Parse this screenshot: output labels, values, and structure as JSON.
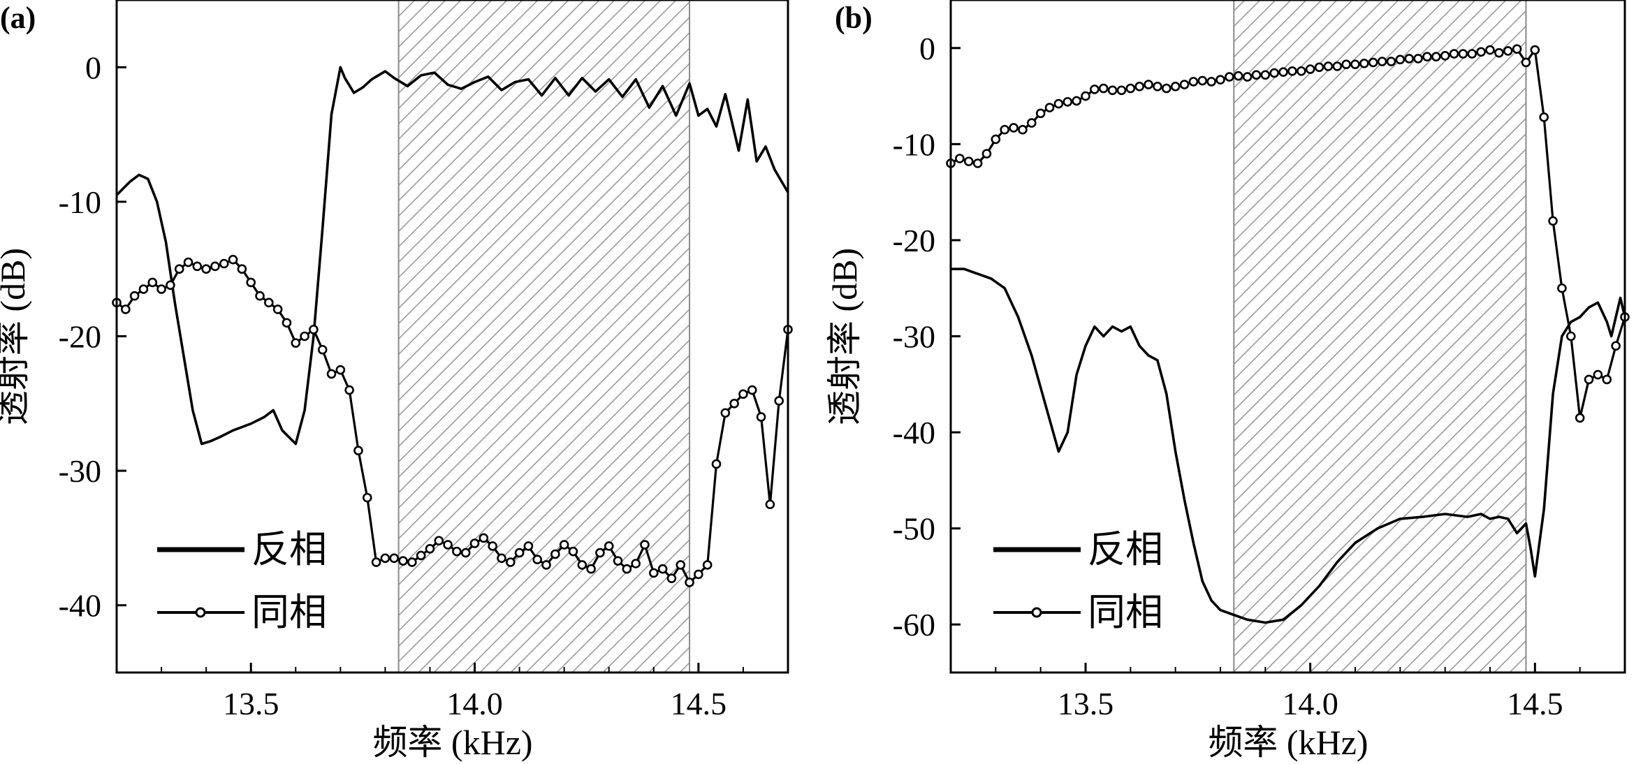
{
  "chart_data": [
    {
      "type": "line",
      "panel_label": "(a)",
      "xlabel": "频率 (kHz)",
      "ylabel": "透射率 (dB)",
      "xlim": [
        13.2,
        14.7
      ],
      "ylim": [
        -45,
        5
      ],
      "xticks": [
        13.5,
        14.0,
        14.5
      ],
      "xtick_labels": [
        "13.5",
        "14.0",
        "14.5"
      ],
      "yticks": [
        0,
        -10,
        -20,
        -30,
        -40
      ],
      "ytick_labels": [
        "0",
        "-10",
        "-20",
        "-30",
        "-40"
      ],
      "band": [
        13.83,
        14.48
      ],
      "legend": [
        "反相",
        "同相"
      ],
      "legend_position": "bottom-left",
      "series": [
        {
          "name": "反相",
          "marker": "none",
          "x": [
            13.2,
            13.23,
            13.25,
            13.27,
            13.29,
            13.31,
            13.33,
            13.35,
            13.37,
            13.39,
            13.41,
            13.43,
            13.46,
            13.5,
            13.53,
            13.55,
            13.57,
            13.6,
            13.62,
            13.64,
            13.66,
            13.68,
            13.7,
            13.71,
            13.73,
            13.75,
            13.77,
            13.8,
            13.82,
            13.85,
            13.88,
            13.91,
            13.94,
            13.97,
            14.0,
            14.03,
            14.06,
            14.09,
            14.12,
            14.15,
            14.18,
            14.21,
            14.24,
            14.27,
            14.3,
            14.33,
            14.36,
            14.39,
            14.42,
            14.45,
            14.48,
            14.5,
            14.52,
            14.54,
            14.56,
            14.59,
            14.61,
            14.63,
            14.65,
            14.67,
            14.7
          ],
          "values": [
            -9.5,
            -8.5,
            -8.0,
            -8.3,
            -10.0,
            -13.0,
            -17.5,
            -21.5,
            -25.5,
            -28.0,
            -27.8,
            -27.5,
            -27.0,
            -26.5,
            -26.0,
            -25.5,
            -27.0,
            -28.0,
            -25.5,
            -20.0,
            -12.0,
            -3.5,
            0,
            -0.8,
            -1.9,
            -1.5,
            -0.9,
            -0.3,
            -0.8,
            -1.4,
            -0.6,
            -0.4,
            -1.3,
            -1.6,
            -1.1,
            -0.7,
            -1.7,
            -1.1,
            -0.9,
            -2.1,
            -0.8,
            -2.1,
            -0.8,
            -1.8,
            -0.9,
            -2.2,
            -0.9,
            -3.0,
            -1.4,
            -3.6,
            -1.2,
            -3.6,
            -3.1,
            -4.4,
            -2.0,
            -6.2,
            -2.4,
            -7.0,
            -5.9,
            -7.6,
            -9.3
          ]
        },
        {
          "name": "同相",
          "marker": "circle",
          "x": [
            13.2,
            13.22,
            13.24,
            13.26,
            13.28,
            13.3,
            13.32,
            13.34,
            13.36,
            13.38,
            13.4,
            13.42,
            13.44,
            13.46,
            13.48,
            13.5,
            13.52,
            13.54,
            13.56,
            13.58,
            13.6,
            13.62,
            13.64,
            13.66,
            13.68,
            13.7,
            13.72,
            13.74,
            13.76,
            13.78,
            13.8,
            13.82,
            13.84,
            13.86,
            13.88,
            13.9,
            13.92,
            13.94,
            13.96,
            13.98,
            14.0,
            14.02,
            14.04,
            14.06,
            14.08,
            14.1,
            14.12,
            14.14,
            14.16,
            14.18,
            14.2,
            14.22,
            14.24,
            14.26,
            14.28,
            14.3,
            14.32,
            14.34,
            14.36,
            14.38,
            14.4,
            14.42,
            14.44,
            14.46,
            14.48,
            14.5,
            14.52,
            14.54,
            14.56,
            14.58,
            14.6,
            14.62,
            14.64,
            14.66,
            14.68,
            14.7
          ],
          "values": [
            -17.5,
            -18.0,
            -17.0,
            -16.5,
            -16.0,
            -16.5,
            -16.2,
            -15.0,
            -14.5,
            -14.8,
            -15.0,
            -14.8,
            -14.6,
            -14.3,
            -15.0,
            -16.0,
            -17.0,
            -17.5,
            -18.0,
            -19.0,
            -20.5,
            -20.0,
            -19.5,
            -21.0,
            -22.8,
            -22.5,
            -24.0,
            -28.5,
            -32.0,
            -36.8,
            -36.5,
            -36.5,
            -36.7,
            -36.8,
            -36.3,
            -35.8,
            -35.2,
            -35.5,
            -36.0,
            -36.1,
            -35.4,
            -35.0,
            -35.6,
            -36.5,
            -36.8,
            -36.1,
            -35.6,
            -36.6,
            -37.0,
            -36.2,
            -35.5,
            -36.0,
            -37.0,
            -37.3,
            -36.1,
            -35.6,
            -36.7,
            -37.3,
            -36.9,
            -35.5,
            -37.6,
            -37.3,
            -38.0,
            -37.0,
            -38.3,
            -37.7,
            -37.0,
            -29.5,
            -25.7,
            -25.0,
            -24.3,
            -24.0,
            -26.0,
            -32.5,
            -24.8,
            -19.5
          ]
        }
      ]
    },
    {
      "type": "line",
      "panel_label": "(b)",
      "xlabel": "频率 (kHz)",
      "ylabel": "透射率 (dB)",
      "xlim": [
        13.2,
        14.7
      ],
      "ylim": [
        -65,
        5
      ],
      "xticks": [
        13.5,
        14.0,
        14.5
      ],
      "xtick_labels": [
        "13.5",
        "14.0",
        "14.5"
      ],
      "yticks": [
        0,
        -10,
        -20,
        -30,
        -40,
        -50,
        -60
      ],
      "ytick_labels": [
        "0",
        "-10",
        "-20",
        "-30",
        "-40",
        "-50",
        "-60"
      ],
      "band": [
        13.83,
        14.48
      ],
      "legend": [
        "反相",
        "同相"
      ],
      "legend_position": "bottom-left",
      "series": [
        {
          "name": "反相",
          "marker": "none",
          "x": [
            13.2,
            13.23,
            13.26,
            13.29,
            13.32,
            13.35,
            13.38,
            13.41,
            13.44,
            13.46,
            13.48,
            13.5,
            13.52,
            13.54,
            13.56,
            13.58,
            13.6,
            13.62,
            13.64,
            13.66,
            13.68,
            13.7,
            13.72,
            13.74,
            13.76,
            13.78,
            13.8,
            13.83,
            13.86,
            13.9,
            13.94,
            13.98,
            14.02,
            14.06,
            14.1,
            14.15,
            14.2,
            14.25,
            14.3,
            14.35,
            14.38,
            14.4,
            14.42,
            14.44,
            14.46,
            14.47,
            14.48,
            14.49,
            14.5,
            14.52,
            14.54,
            14.56,
            14.58,
            14.6,
            14.62,
            14.64,
            14.66,
            14.67,
            14.68,
            14.69,
            14.7
          ],
          "values": [
            -23.0,
            -23.0,
            -23.5,
            -24.0,
            -25.0,
            -28.0,
            -32.0,
            -37.0,
            -42.0,
            -40.0,
            -34.0,
            -31.0,
            -29.0,
            -30.0,
            -29.0,
            -29.5,
            -29.0,
            -31.0,
            -32.0,
            -32.5,
            -36.0,
            -42.0,
            -47.0,
            -51.5,
            -55.5,
            -57.5,
            -58.5,
            -59.0,
            -59.5,
            -59.8,
            -59.5,
            -58.0,
            -56.0,
            -53.5,
            -51.5,
            -50.0,
            -49.0,
            -48.8,
            -48.5,
            -48.8,
            -48.5,
            -49.0,
            -48.8,
            -49.0,
            -50.5,
            -50.0,
            -49.5,
            -52.0,
            -55.0,
            -48.0,
            -36.0,
            -30.0,
            -28.5,
            -28.0,
            -27.0,
            -26.5,
            -28.5,
            -30.0,
            -28.0,
            -26.0,
            -28.0
          ]
        },
        {
          "name": "同相",
          "marker": "circle",
          "x": [
            13.2,
            13.22,
            13.24,
            13.26,
            13.28,
            13.3,
            13.32,
            13.34,
            13.36,
            13.38,
            13.4,
            13.42,
            13.44,
            13.46,
            13.48,
            13.5,
            13.52,
            13.54,
            13.56,
            13.58,
            13.6,
            13.62,
            13.64,
            13.66,
            13.68,
            13.7,
            13.72,
            13.74,
            13.76,
            13.78,
            13.8,
            13.82,
            13.84,
            13.86,
            13.88,
            13.9,
            13.92,
            13.94,
            13.96,
            13.98,
            14.0,
            14.02,
            14.04,
            14.06,
            14.08,
            14.1,
            14.12,
            14.14,
            14.16,
            14.18,
            14.2,
            14.22,
            14.24,
            14.26,
            14.28,
            14.3,
            14.32,
            14.34,
            14.36,
            14.38,
            14.4,
            14.42,
            14.44,
            14.46,
            14.48,
            14.5,
            14.52,
            14.54,
            14.56,
            14.58,
            14.6,
            14.62,
            14.64,
            14.66,
            14.68,
            14.7
          ],
          "values": [
            -12.0,
            -11.5,
            -11.8,
            -12.0,
            -11.0,
            -9.5,
            -8.5,
            -8.3,
            -8.5,
            -7.8,
            -6.8,
            -6.2,
            -5.8,
            -5.6,
            -5.5,
            -5.0,
            -4.3,
            -4.2,
            -4.4,
            -4.4,
            -4.2,
            -4.0,
            -3.8,
            -4.0,
            -4.2,
            -4.0,
            -3.8,
            -3.5,
            -3.4,
            -3.5,
            -3.3,
            -3.0,
            -2.9,
            -3.0,
            -2.8,
            -2.8,
            -2.6,
            -2.5,
            -2.4,
            -2.4,
            -2.2,
            -2.0,
            -1.9,
            -1.9,
            -1.7,
            -1.7,
            -1.6,
            -1.5,
            -1.4,
            -1.4,
            -1.2,
            -1.1,
            -1.1,
            -0.9,
            -0.9,
            -0.8,
            -0.6,
            -0.6,
            -0.6,
            -0.4,
            -0.2,
            -0.5,
            -0.3,
            -0.1,
            -1.5,
            -0.2,
            -7.2,
            -18.0,
            -25.0,
            -30.0,
            -38.5,
            -34.5,
            -34.0,
            -34.5,
            -31.0,
            -28.0
          ]
        }
      ]
    }
  ]
}
